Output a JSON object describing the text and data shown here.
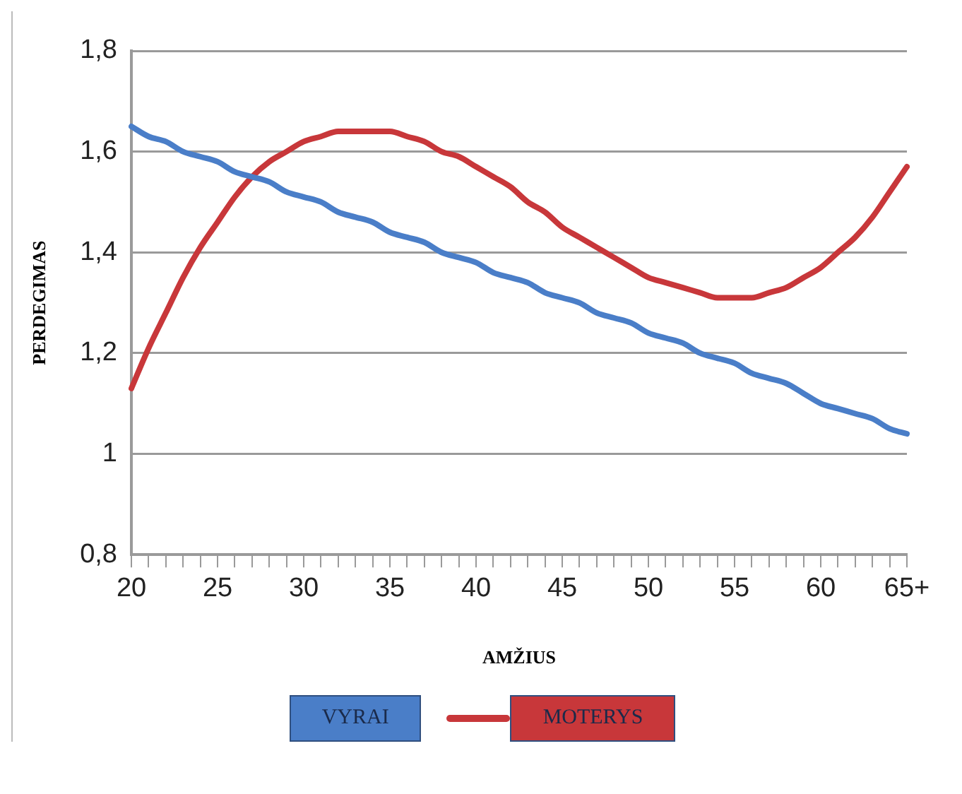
{
  "chart_data": {
    "type": "line",
    "xlabel": "AMŽIUS",
    "ylabel": "PERDEGIMAS",
    "categories": [
      "20",
      null,
      null,
      null,
      null,
      "25",
      null,
      null,
      null,
      null,
      "30",
      null,
      null,
      null,
      null,
      "35",
      null,
      null,
      null,
      null,
      "40",
      null,
      null,
      null,
      null,
      "45",
      null,
      null,
      null,
      null,
      "50",
      null,
      null,
      null,
      null,
      "55",
      null,
      null,
      null,
      null,
      "60",
      null,
      null,
      null,
      null,
      "65+"
    ],
    "series": [
      {
        "name": "VYRAI",
        "color": "#4a7ec8",
        "values": [
          1.65,
          1.63,
          1.62,
          1.6,
          1.59,
          1.58,
          1.56,
          1.55,
          1.54,
          1.52,
          1.51,
          1.5,
          1.48,
          1.47,
          1.46,
          1.44,
          1.43,
          1.42,
          1.4,
          1.39,
          1.38,
          1.36,
          1.35,
          1.34,
          1.32,
          1.31,
          1.3,
          1.28,
          1.27,
          1.26,
          1.24,
          1.23,
          1.22,
          1.2,
          1.19,
          1.18,
          1.16,
          1.15,
          1.14,
          1.12,
          1.1,
          1.09,
          1.08,
          1.07,
          1.05,
          1.04
        ]
      },
      {
        "name": "MOTERYS",
        "color": "#c8373a",
        "values": [
          1.13,
          1.21,
          1.28,
          1.35,
          1.41,
          1.46,
          1.51,
          1.55,
          1.58,
          1.6,
          1.62,
          1.63,
          1.64,
          1.64,
          1.64,
          1.64,
          1.63,
          1.62,
          1.6,
          1.59,
          1.57,
          1.55,
          1.53,
          1.5,
          1.48,
          1.45,
          1.43,
          1.41,
          1.39,
          1.37,
          1.35,
          1.34,
          1.33,
          1.32,
          1.31,
          1.31,
          1.31,
          1.32,
          1.33,
          1.35,
          1.37,
          1.4,
          1.43,
          1.47,
          1.52,
          1.57
        ]
      }
    ],
    "ylim": [
      0.8,
      1.8
    ],
    "yticks": [
      {
        "value": 0.8,
        "label": "0,8"
      },
      1,
      {
        "value": 1.2,
        "label": "1,2"
      },
      {
        "value": 1.4,
        "label": "1,4"
      },
      {
        "value": 1.6,
        "label": "1,6"
      },
      {
        "value": 1.8,
        "label": "1,8"
      }
    ],
    "grid": "y",
    "legend": "bottom",
    "marker": "none",
    "line_style": "solid"
  }
}
